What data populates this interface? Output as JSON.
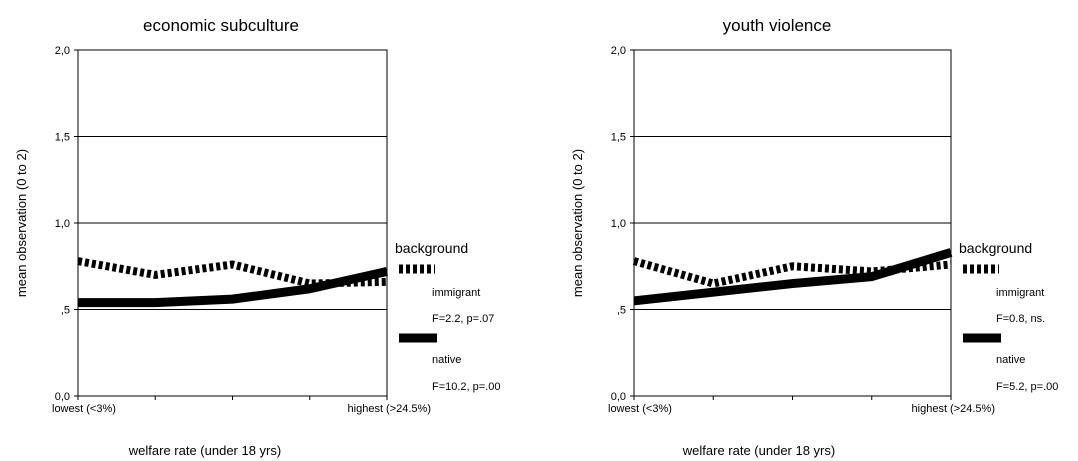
{
  "chart_data": [
    {
      "type": "line",
      "title": "economic subculture",
      "xlabel": "welfare rate (under 18 yrs)",
      "ylabel": "mean observation (0 to 2)",
      "ylim": [
        0,
        2
      ],
      "yticks": [
        "0,0",
        ",5",
        "1,0",
        "1,5",
        "2,0"
      ],
      "x_tick_labels": [
        "lowest (<3%)",
        "",
        "",
        "",
        "highest (>24.5%)"
      ],
      "grid": "horizontal",
      "legend": {
        "placement": "right",
        "title": "background",
        "entries": [
          {
            "label": "immigrant",
            "stat": "F=2.2, p=.07",
            "style": "dotted"
          },
          {
            "label": "native",
            "stat": "F=10.2, p=.00",
            "style": "solid"
          }
        ]
      },
      "x": [
        1,
        2,
        3,
        4,
        5
      ],
      "series": [
        {
          "name": "immigrant",
          "values": [
            0.78,
            0.7,
            0.76,
            0.65,
            0.66
          ]
        },
        {
          "name": "native",
          "values": [
            0.54,
            0.54,
            0.56,
            0.62,
            0.72
          ]
        }
      ]
    },
    {
      "type": "line",
      "title": "youth violence",
      "xlabel": "welfare rate (under 18 yrs)",
      "ylabel": "mean observation (0 to 2)",
      "ylim": [
        0,
        2
      ],
      "yticks": [
        "0,0",
        ",5",
        "1,0",
        "1,5",
        "2,0"
      ],
      "x_tick_labels": [
        "lowest (<3%)",
        "",
        "",
        "",
        "highest (>24.5%)"
      ],
      "grid": "horizontal",
      "legend": {
        "placement": "right",
        "title": "background",
        "entries": [
          {
            "label": "immigrant",
            "stat": "F=0.8, ns.",
            "style": "dotted"
          },
          {
            "label": "native",
            "stat": "F=5.2, p=.00",
            "style": "solid"
          }
        ]
      },
      "x": [
        1,
        2,
        3,
        4,
        5
      ],
      "series": [
        {
          "name": "immigrant",
          "values": [
            0.78,
            0.65,
            0.75,
            0.72,
            0.76
          ]
        },
        {
          "name": "native",
          "values": [
            0.55,
            0.6,
            0.65,
            0.69,
            0.83
          ]
        }
      ]
    }
  ]
}
